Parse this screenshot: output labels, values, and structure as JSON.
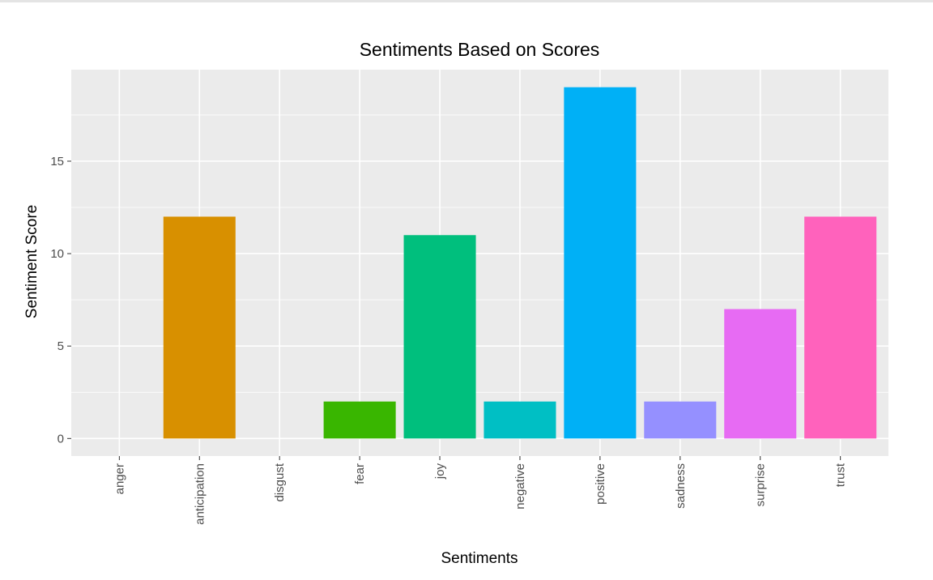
{
  "chart_data": {
    "type": "bar",
    "title": "Sentiments Based on Scores",
    "xlabel": "Sentiments",
    "ylabel": "Sentiment Score",
    "categories": [
      "anger",
      "anticipation",
      "disgust",
      "fear",
      "joy",
      "negative",
      "positive",
      "sadness",
      "surprise",
      "trust"
    ],
    "values": [
      0,
      12,
      0,
      2,
      11,
      2,
      19,
      2,
      7,
      12
    ],
    "colors": [
      "#F8766D",
      "#D89000",
      "#A3A500",
      "#39B600",
      "#00BF7D",
      "#00BFC4",
      "#00B0F6",
      "#9590FF",
      "#E76BF3",
      "#FF62BC"
    ],
    "yticks": [
      0,
      5,
      10,
      15
    ],
    "ylim": [
      -0.95,
      19.95
    ],
    "grid": true,
    "legend": "none",
    "panel_color": "#EBEBEB"
  }
}
